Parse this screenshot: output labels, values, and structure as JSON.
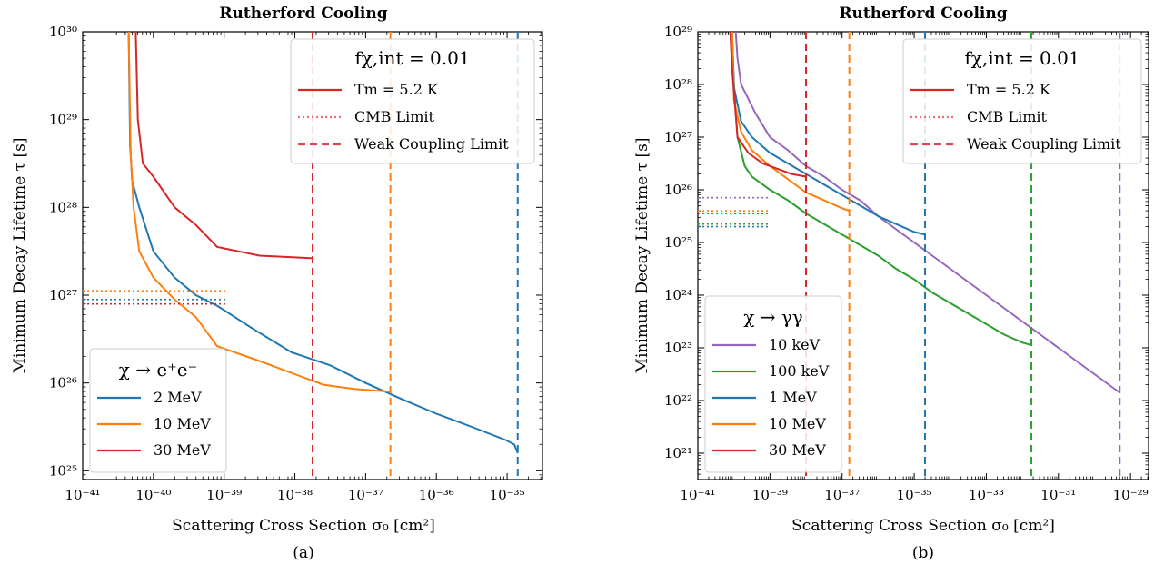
{
  "chart_data": [
    {
      "type": "line",
      "panel_label": "(a)",
      "title": "Rutherford Cooling",
      "xlabel": "Scattering Cross Section σ₀ [cm²]",
      "ylabel": "Minimum Decay Lifetime τ [s]",
      "xscale": "log",
      "yscale": "log",
      "xlim_exp": [
        -41,
        -34.5
      ],
      "ylim_exp": [
        24.9,
        30
      ],
      "x_ticks": [
        "10⁻⁴¹",
        "10⁻⁴⁰",
        "10⁻³⁹",
        "10⁻³⁸",
        "10⁻³⁷",
        "10⁻³⁶",
        "10⁻³⁵"
      ],
      "x_tick_exps": [
        -41,
        -40,
        -39,
        -38,
        -37,
        -36,
        -35
      ],
      "y_ticks": [
        "10²⁵",
        "10²⁶",
        "10²⁷",
        "10²⁸",
        "10²⁹",
        "10³⁰"
      ],
      "y_tick_exps": [
        25,
        26,
        27,
        28,
        29,
        30
      ],
      "legend_style": {
        "title": "fχ,int = 0.01",
        "placement": "top-right",
        "entries": [
          {
            "label": "Tm = 5.2 K",
            "style": "solid",
            "color": "#d62728"
          },
          {
            "label": "CMB Limit",
            "style": "dotted",
            "color": "#e8707a"
          },
          {
            "label": "Weak Coupling Limit",
            "style": "dashed",
            "color": "#e0454f"
          }
        ]
      },
      "legend_series": {
        "title": "χ → e⁺e⁻",
        "placement": "lower-left"
      },
      "series": [
        {
          "name": "2 MeV",
          "color": "#1f77b4",
          "points": [
            [
              -40.35,
              30
            ],
            [
              -40.33,
              28.7
            ],
            [
              -40.3,
              28.3
            ],
            [
              -40.2,
              28.0
            ],
            [
              -40.0,
              27.5
            ],
            [
              -39.7,
              27.2
            ],
            [
              -39.4,
              27.0
            ],
            [
              -39.1,
              26.88
            ],
            [
              -38.6,
              26.62
            ],
            [
              -38.05,
              26.35
            ],
            [
              -37.5,
              26.2
            ],
            [
              -37.0,
              26.0
            ],
            [
              -36.5,
              25.82
            ],
            [
              -36.0,
              25.65
            ],
            [
              -35.5,
              25.5
            ],
            [
              -35.02,
              25.35
            ],
            [
              -34.9,
              25.3
            ],
            [
              -34.85,
              25.2
            ]
          ],
          "cmb": 26.95,
          "wc_exp": -34.85
        },
        {
          "name": "10 MeV",
          "color": "#ff7f0e",
          "points": [
            [
              -40.35,
              30
            ],
            [
              -40.32,
              28.6
            ],
            [
              -40.28,
              28.0
            ],
            [
              -40.2,
              27.5
            ],
            [
              -40.0,
              27.2
            ],
            [
              -39.7,
              26.95
            ],
            [
              -39.4,
              26.75
            ],
            [
              -39.1,
              26.42
            ],
            [
              -38.5,
              26.25
            ],
            [
              -38.0,
              26.1
            ],
            [
              -37.6,
              25.98
            ],
            [
              -37.15,
              25.93
            ],
            [
              -36.65,
              25.9
            ]
          ],
          "cmb": 27.05,
          "wc_exp": -36.65
        },
        {
          "name": "30 MeV",
          "color": "#d62728",
          "points": [
            [
              -40.25,
              30
            ],
            [
              -40.22,
              29.0
            ],
            [
              -40.15,
              28.5
            ],
            [
              -40.0,
              28.35
            ],
            [
              -39.7,
              28.0
            ],
            [
              -39.4,
              27.8
            ],
            [
              -39.1,
              27.55
            ],
            [
              -38.8,
              27.5
            ],
            [
              -38.5,
              27.45
            ],
            [
              -38.0,
              27.43
            ],
            [
              -37.75,
              27.42
            ]
          ],
          "cmb": 26.9,
          "wc_exp": -37.75
        }
      ]
    },
    {
      "type": "line",
      "panel_label": "(b)",
      "title": "Rutherford Cooling",
      "xlabel": "Scattering Cross Section σ₀ [cm²]",
      "ylabel": "Minimum Decay Lifetime τ [s]",
      "xscale": "log",
      "yscale": "log",
      "xlim_exp": [
        -41,
        -28.5
      ],
      "ylim_exp": [
        20.5,
        29
      ],
      "x_ticks": [
        "10⁻⁴¹",
        "10⁻³⁹",
        "10⁻³⁷",
        "10⁻³⁵",
        "10⁻³³",
        "10⁻³¹",
        "10⁻²⁹"
      ],
      "x_tick_exps": [
        -41,
        -39,
        -37,
        -35,
        -33,
        -31,
        -29
      ],
      "y_ticks": [
        "10²¹",
        "10²²",
        "10²³",
        "10²⁴",
        "10²⁵",
        "10²⁶",
        "10²⁷",
        "10²⁸",
        "10²⁹"
      ],
      "y_tick_exps": [
        21,
        22,
        23,
        24,
        25,
        26,
        27,
        28,
        29
      ],
      "legend_style": {
        "title": "fχ,int = 0.01",
        "placement": "top-right",
        "entries": [
          {
            "label": "Tm = 5.2 K",
            "style": "solid",
            "color": "#d62728"
          },
          {
            "label": "CMB Limit",
            "style": "dotted",
            "color": "#e8707a"
          },
          {
            "label": "Weak Coupling Limit",
            "style": "dashed",
            "color": "#e0454f"
          }
        ]
      },
      "legend_series": {
        "title": "χ → γγ",
        "placement": "lower-left"
      },
      "series": [
        {
          "name": "10 keV",
          "color": "#9467bd",
          "points": [
            [
              -39.95,
              29
            ],
            [
              -39.9,
              28.5
            ],
            [
              -39.8,
              28.0
            ],
            [
              -39.4,
              27.45
            ],
            [
              -39.0,
              27.0
            ],
            [
              -38.5,
              26.75
            ],
            [
              -38.0,
              26.45
            ],
            [
              -37.5,
              26.25
            ],
            [
              -37.0,
              26.0
            ],
            [
              -36.5,
              25.8
            ],
            [
              -36.0,
              25.5
            ],
            [
              -35.5,
              25.25
            ],
            [
              -35.0,
              25.0
            ],
            [
              -34.5,
              24.75
            ],
            [
              -34.0,
              24.5
            ],
            [
              -33.5,
              24.25
            ],
            [
              -33.0,
              24.0
            ],
            [
              -32.5,
              23.75
            ],
            [
              -32.0,
              23.5
            ],
            [
              -31.5,
              23.25
            ],
            [
              -31.0,
              23.0
            ],
            [
              -30.5,
              22.75
            ],
            [
              -30.0,
              22.5
            ],
            [
              -29.5,
              22.25
            ],
            [
              -29.3,
              22.15
            ]
          ],
          "cmb": 25.85,
          "wc_exp": -29.3
        },
        {
          "name": "100 keV",
          "color": "#2ca02c",
          "points": [
            [
              -40.05,
              29
            ],
            [
              -40.0,
              28.0
            ],
            [
              -39.9,
              27.0
            ],
            [
              -39.7,
              26.45
            ],
            [
              -39.5,
              26.25
            ],
            [
              -39.0,
              26.0
            ],
            [
              -38.5,
              25.8
            ],
            [
              -38.0,
              25.55
            ],
            [
              -37.5,
              25.35
            ],
            [
              -37.0,
              25.15
            ],
            [
              -36.5,
              24.95
            ],
            [
              -36.0,
              24.75
            ],
            [
              -35.5,
              24.5
            ],
            [
              -35.0,
              24.3
            ],
            [
              -34.5,
              24.05
            ],
            [
              -34.0,
              23.85
            ],
            [
              -33.5,
              23.65
            ],
            [
              -33.0,
              23.45
            ],
            [
              -32.5,
              23.25
            ],
            [
              -32.0,
              23.1
            ],
            [
              -31.75,
              23.05
            ]
          ],
          "cmb": 25.35,
          "wc_exp": -31.75
        },
        {
          "name": "1 MeV",
          "color": "#1f77b4",
          "points": [
            [
              -40.05,
              29
            ],
            [
              -40.0,
              27.95
            ],
            [
              -39.8,
              27.3
            ],
            [
              -39.5,
              27.0
            ],
            [
              -39.0,
              26.7
            ],
            [
              -38.5,
              26.5
            ],
            [
              -38.0,
              26.3
            ],
            [
              -37.5,
              26.1
            ],
            [
              -37.0,
              25.9
            ],
            [
              -36.5,
              25.7
            ],
            [
              -36.0,
              25.5
            ],
            [
              -35.5,
              25.35
            ],
            [
              -35.0,
              25.2
            ],
            [
              -34.7,
              25.15
            ]
          ],
          "cmb": 25.3,
          "wc_exp": -34.7
        },
        {
          "name": "10 MeV",
          "color": "#ff7f0e",
          "points": [
            [
              -40.05,
              29
            ],
            [
              -40.0,
              27.7
            ],
            [
              -39.8,
              27.1
            ],
            [
              -39.5,
              26.75
            ],
            [
              -39.0,
              26.45
            ],
            [
              -38.5,
              26.2
            ],
            [
              -38.0,
              25.95
            ],
            [
              -37.5,
              25.8
            ],
            [
              -37.0,
              25.65
            ],
            [
              -36.8,
              25.6
            ]
          ],
          "cmb": 25.6,
          "wc_exp": -36.8
        },
        {
          "name": "30 MeV",
          "color": "#d62728",
          "points": [
            [
              -40.1,
              29
            ],
            [
              -40.05,
              28.3
            ],
            [
              -39.9,
              27.0
            ],
            [
              -39.6,
              26.7
            ],
            [
              -39.2,
              26.5
            ],
            [
              -38.8,
              26.4
            ],
            [
              -38.4,
              26.3
            ],
            [
              -38.0,
              26.25
            ]
          ],
          "cmb": 25.55,
          "wc_exp": -38.0
        }
      ]
    }
  ]
}
